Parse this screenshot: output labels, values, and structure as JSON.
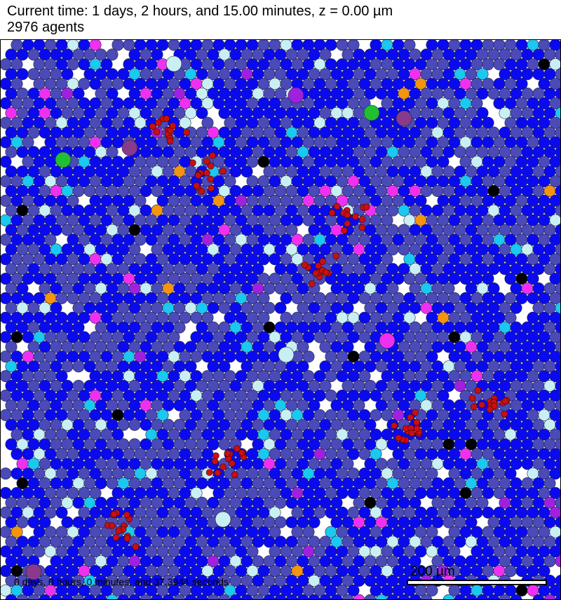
{
  "header": {
    "time_line": "Current time: 1 days, 2 hours, and 15.00 minutes, z = 0.00 µm",
    "agent_count": "2976 agents"
  },
  "footer": {
    "timestamp": "0 days, 0 hours, 0 minutes, and 37.3944 seconds",
    "scalebar_label": "200 µm"
  },
  "colors": {
    "blue_cell": "#0a0af0",
    "slate_cell": "#4a4ab8",
    "light_cyan_cell": "#c8f0f4",
    "cyan_cell": "#1ac8f0",
    "magenta_cell": "#f030f0",
    "purple_cell": "#a020e0",
    "dark_purple_cell": "#8a3a8a",
    "orange_cell": "#f59410",
    "green_cell": "#20c030",
    "red_cell": "#c81010",
    "black_cell": "#000000",
    "background": "#ffffff"
  }
}
